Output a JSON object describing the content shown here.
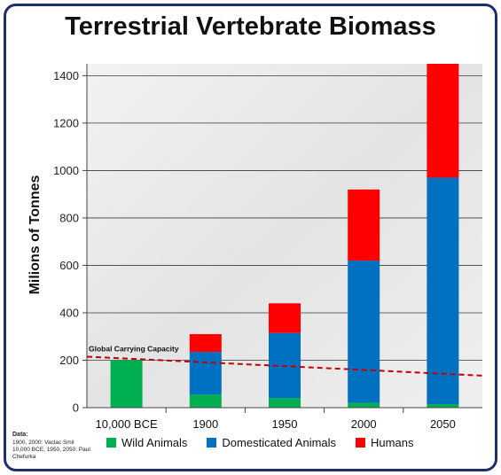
{
  "chart_data": {
    "type": "bar",
    "stacked": true,
    "title": "Terrestrial Vertebrate Biomass",
    "ylabel": "Milions of Tonnes",
    "xlabel": "",
    "ylim": [
      0,
      1450
    ],
    "yticks": [
      0,
      200,
      400,
      600,
      800,
      1000,
      1200,
      1400
    ],
    "categories": [
      "10,000 BCE",
      "1900",
      "1950",
      "2000",
      "2050"
    ],
    "series": [
      {
        "name": "Wild Animals",
        "color": "#00b050",
        "values": [
          200,
          55,
          40,
          20,
          15
        ]
      },
      {
        "name": "Domesticated Animals",
        "color": "#0070c0",
        "values": [
          0,
          180,
          275,
          600,
          955
        ]
      },
      {
        "name": "Humans",
        "color": "#ff0000",
        "values": [
          0,
          75,
          125,
          300,
          480
        ]
      }
    ],
    "annotation": {
      "label": "Global Carrying Capacity",
      "start_value": 215,
      "end_value": 135,
      "color": "#c00000"
    },
    "grid": true,
    "legend_placement": "bottom"
  },
  "source": {
    "heading": "Data:",
    "line1": "1900, 2000: Vaclac Smil",
    "line2": "10,000 BCE, 1950, 2050: Paul Chefurka"
  }
}
